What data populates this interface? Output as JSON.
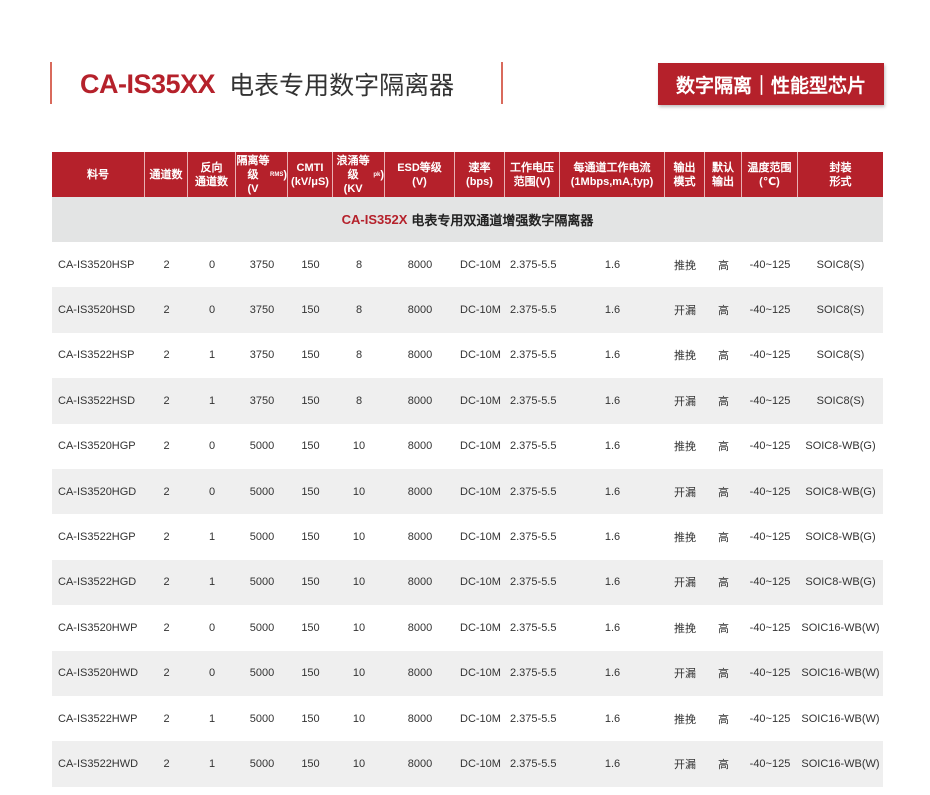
{
  "title": {
    "code": "CA-IS35XX",
    "name": "电表专用数字隔离器"
  },
  "badge": "数字隔离｜性能型芯片",
  "colors": {
    "accent": "#b5212b",
    "section_bg": "#e3e4e4",
    "alt_row": "#efefef"
  },
  "headers": [
    "料号",
    "通道数",
    "反向\n通道数",
    "隔离等级\n(V",
    "CMTI\n(kV/μS)",
    "浪涌等级\n(KV",
    "ESD等级\n(V)",
    "速率\n(bps)",
    "工作电压\n范围(V)",
    "每通道工作电流\n(1Mbps,mA,typ)",
    "输出\n模式",
    "默认\n输出",
    "温度范围\n(℃)",
    "封装\n形式"
  ],
  "header_subs": {
    "iso": "RMS",
    "surge": "pk"
  },
  "section": {
    "code": "CA-IS352X",
    "name": "电表专用双通道增强数字隔离器"
  },
  "rows": [
    [
      "CA-IS3520HSP",
      "2",
      "0",
      "3750",
      "150",
      "8",
      "8000",
      "DC-10M",
      "2.375-5.5",
      "1.6",
      "推挽",
      "高",
      "-40~125",
      "SOIC8(S)"
    ],
    [
      "CA-IS3520HSD",
      "2",
      "0",
      "3750",
      "150",
      "8",
      "8000",
      "DC-10M",
      "2.375-5.5",
      "1.6",
      "开漏",
      "高",
      "-40~125",
      "SOIC8(S)"
    ],
    [
      "CA-IS3522HSP",
      "2",
      "1",
      "3750",
      "150",
      "8",
      "8000",
      "DC-10M",
      "2.375-5.5",
      "1.6",
      "推挽",
      "高",
      "-40~125",
      "SOIC8(S)"
    ],
    [
      "CA-IS3522HSD",
      "2",
      "1",
      "3750",
      "150",
      "8",
      "8000",
      "DC-10M",
      "2.375-5.5",
      "1.6",
      "开漏",
      "高",
      "-40~125",
      "SOIC8(S)"
    ],
    [
      "CA-IS3520HGP",
      "2",
      "0",
      "5000",
      "150",
      "10",
      "8000",
      "DC-10M",
      "2.375-5.5",
      "1.6",
      "推挽",
      "高",
      "-40~125",
      "SOIC8-WB(G)"
    ],
    [
      "CA-IS3520HGD",
      "2",
      "0",
      "5000",
      "150",
      "10",
      "8000",
      "DC-10M",
      "2.375-5.5",
      "1.6",
      "开漏",
      "高",
      "-40~125",
      "SOIC8-WB(G)"
    ],
    [
      "CA-IS3522HGP",
      "2",
      "1",
      "5000",
      "150",
      "10",
      "8000",
      "DC-10M",
      "2.375-5.5",
      "1.6",
      "推挽",
      "高",
      "-40~125",
      "SOIC8-WB(G)"
    ],
    [
      "CA-IS3522HGD",
      "2",
      "1",
      "5000",
      "150",
      "10",
      "8000",
      "DC-10M",
      "2.375-5.5",
      "1.6",
      "开漏",
      "高",
      "-40~125",
      "SOIC8-WB(G)"
    ],
    [
      "CA-IS3520HWP",
      "2",
      "0",
      "5000",
      "150",
      "10",
      "8000",
      "DC-10M",
      "2.375-5.5",
      "1.6",
      "推挽",
      "高",
      "-40~125",
      "SOIC16-WB(W)"
    ],
    [
      "CA-IS3520HWD",
      "2",
      "0",
      "5000",
      "150",
      "10",
      "8000",
      "DC-10M",
      "2.375-5.5",
      "1.6",
      "开漏",
      "高",
      "-40~125",
      "SOIC16-WB(W)"
    ],
    [
      "CA-IS3522HWP",
      "2",
      "1",
      "5000",
      "150",
      "10",
      "8000",
      "DC-10M",
      "2.375-5.5",
      "1.6",
      "推挽",
      "高",
      "-40~125",
      "SOIC16-WB(W)"
    ],
    [
      "CA-IS3522HWD",
      "2",
      "1",
      "5000",
      "150",
      "10",
      "8000",
      "DC-10M",
      "2.375-5.5",
      "1.6",
      "开漏",
      "高",
      "-40~125",
      "SOIC16-WB(W)"
    ]
  ]
}
